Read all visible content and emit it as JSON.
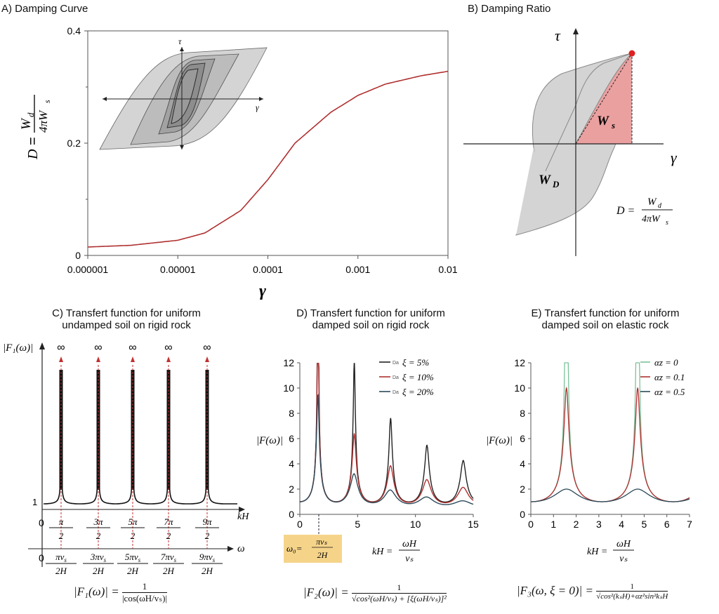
{
  "panels": {
    "a": {
      "title": "A) Damping Curve",
      "ylabel_lhs": "D",
      "ylabel_num": "W",
      "ylabel_num_sub": "d",
      "ylabel_den": "4πW",
      "ylabel_den_sub": "s",
      "xlabel": "γ",
      "inset_tau": "τ",
      "inset_gamma": "γ"
    },
    "b": {
      "title": "B) Damping Ratio",
      "tau": "τ",
      "gamma": "γ",
      "ws": "W",
      "ws_sub": "s",
      "wd": "W",
      "wd_sub": "D",
      "formula_lhs": "D =",
      "formula_num": "W",
      "formula_num_sub": "d",
      "formula_den": "4πW",
      "formula_den_sub": "s"
    },
    "c": {
      "title_line1": "C) Transfert function for uniform",
      "title_line2": "undamped soil on rigid rock",
      "ylabel": "|F₁(ω)|",
      "infinity": "∞",
      "one_label": "1",
      "xaxis1": "kH",
      "xaxis2": "ω",
      "zero": "0",
      "kh_ticks": [
        {
          "num": "π",
          "den": "2"
        },
        {
          "num": "3π",
          "den": "2"
        },
        {
          "num": "5π",
          "den": "2"
        },
        {
          "num": "7π",
          "den": "2"
        },
        {
          "num": "9π",
          "den": "2"
        }
      ],
      "w_ticks": [
        {
          "num": "πv",
          "den": "2H"
        },
        {
          "num": "3πv",
          "den": "2H"
        },
        {
          "num": "5πv",
          "den": "2H"
        },
        {
          "num": "7πv",
          "den": "2H"
        },
        {
          "num": "9πv",
          "den": "2H"
        }
      ],
      "sub_s": "s",
      "formula_lhs": "|F₁(ω)| =",
      "formula_num": "1",
      "formula_den": "|cos(ωH/vₛ)|"
    },
    "d": {
      "title_line1": "D) Transfert function for uniform",
      "title_line2": "damped soil on rigid rock",
      "ylabel": "|F(ω)|",
      "omega0_lhs": "ω₀=",
      "omega0_num": "πvₛ",
      "omega0_den": "2H",
      "xlabel_lhs": "kH =",
      "xlabel_num": "ωH",
      "xlabel_den": "vₛ",
      "formula_lhs": "|F₂(ω)| =",
      "formula_num": "1",
      "formula_den": "√cos²(ωH/vₛ) + [ξ(ωH/vₛ)]²"
    },
    "e": {
      "title_line1": "E) Transfert function for uniform",
      "title_line2": "damped soil on elastic rock",
      "ylabel": "|F(ω)|",
      "xlabel_lhs": "kH =",
      "xlabel_num": "ωH",
      "xlabel_den": "vₛ",
      "formula_lhs": "|F₃(ω, ξ = 0)| =",
      "formula_num": "1",
      "formula_den": "√cos²(kₛH)+αz²sin²kₛH"
    }
  },
  "colors": {
    "red_curve": "#b03030",
    "dark_curve": "#222222",
    "blue_curve": "#2c4a5a",
    "green_curve": "#7cc29a",
    "hysteresis_fill": "#d0d0d0",
    "ws_fill": "#eba0a0",
    "omega_box": "#f5d48a"
  },
  "chart_data": [
    {
      "type": "line",
      "panel": "A",
      "title": "A) Damping Curve",
      "xlabel": "γ",
      "ylabel": "D = Wd/(4πWs)",
      "xscale": "log",
      "xlim": [
        1e-06,
        0.01
      ],
      "ylim": [
        0,
        0.4
      ],
      "x_ticks": [
        "0.000001",
        "0.00001",
        "0.0001",
        "0.001",
        "0.01"
      ],
      "y_ticks": [
        "0",
        "0.2",
        "0.4"
      ],
      "series": [
        {
          "color": "#b03030",
          "x": [
            1e-06,
            3e-06,
            1e-05,
            2e-05,
            5e-05,
            0.0001,
            0.0002,
            0.0005,
            0.001,
            0.002,
            0.005,
            0.01
          ],
          "y": [
            0.015,
            0.018,
            0.027,
            0.04,
            0.08,
            0.135,
            0.2,
            0.255,
            0.285,
            0.305,
            0.32,
            0.328
          ]
        }
      ]
    },
    {
      "type": "line",
      "panel": "D",
      "title": "D) Transfert function for uniform damped soil on rigid rock",
      "xlabel": "kH = ωH/vs",
      "ylabel": "|F(ω)|",
      "xlim": [
        0,
        15
      ],
      "ylim": [
        0,
        12
      ],
      "x_ticks": [
        "0",
        "5",
        "10",
        "15"
      ],
      "y_ticks": [
        "0",
        "2",
        "4",
        "6",
        "8",
        "10",
        "12"
      ],
      "legend_position": "top-right",
      "series": [
        {
          "name": "ξ = 5%",
          "legend_tag": "Da",
          "color": "#222222",
          "xi": 0.05
        },
        {
          "name": "ξ = 10%",
          "legend_tag": "Da",
          "color": "#b03030",
          "xi": 0.1
        },
        {
          "name": "ξ = 20%",
          "legend_tag": "Da",
          "color": "#2c4a5a",
          "xi": 0.2
        }
      ]
    },
    {
      "type": "line",
      "panel": "E",
      "title": "E) Transfert function for uniform damped soil on elastic rock",
      "xlabel": "kH = ωH/vs",
      "ylabel": "|F(ω)|",
      "xlim": [
        0,
        7
      ],
      "ylim": [
        0,
        12
      ],
      "x_ticks": [
        "0",
        "1",
        "2",
        "3",
        "4",
        "5",
        "6",
        "7"
      ],
      "y_ticks": [
        "0",
        "2",
        "4",
        "6",
        "8",
        "10",
        "12"
      ],
      "legend_position": "top-right",
      "series": [
        {
          "name": "αz = 0",
          "color": "#7cc29a",
          "alpha": 0
        },
        {
          "name": "αz = 0.1",
          "color": "#b03030",
          "alpha": 0.1
        },
        {
          "name": "αz = 0.5",
          "color": "#2c4a5a",
          "alpha": 0.5
        }
      ]
    }
  ]
}
